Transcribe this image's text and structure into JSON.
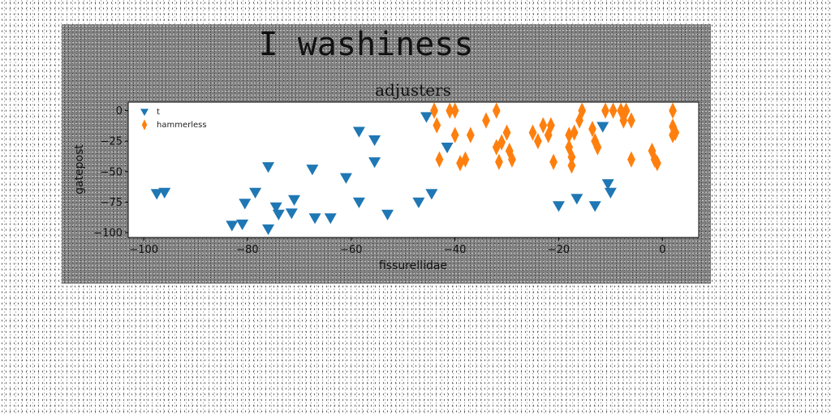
{
  "figure": {
    "suptitle": "I washiness"
  },
  "chart_data": {
    "type": "scatter",
    "title": "adjusters",
    "xlabel": "fissurellidae",
    "ylabel": "gatepost",
    "xlim": [
      -103,
      7
    ],
    "ylim": [
      -104,
      7
    ],
    "xticks": [
      -100,
      -80,
      -60,
      -40,
      -20,
      0
    ],
    "yticks": [
      0,
      -25,
      -50,
      -75,
      -100
    ],
    "grid": false,
    "legend_position": "top-left",
    "series": [
      {
        "name": "t",
        "marker": "triangle-down",
        "color": "#1f77b4",
        "points": [
          [
            -97.5,
            -68
          ],
          [
            -96,
            -67
          ],
          [
            -83,
            -94
          ],
          [
            -81,
            -93
          ],
          [
            -80.5,
            -76
          ],
          [
            -78.5,
            -67
          ],
          [
            -76,
            -97
          ],
          [
            -76,
            -46
          ],
          [
            -74.5,
            -79
          ],
          [
            -74,
            -85
          ],
          [
            -71.5,
            -84
          ],
          [
            -71,
            -73
          ],
          [
            -67.5,
            -48
          ],
          [
            -67,
            -88
          ],
          [
            -64,
            -88
          ],
          [
            -61,
            -55
          ],
          [
            -58.5,
            -75
          ],
          [
            -58.5,
            -17
          ],
          [
            -55.5,
            -24
          ],
          [
            -55.5,
            -42
          ],
          [
            -53,
            -85
          ],
          [
            -47,
            -75
          ],
          [
            -45.5,
            -5
          ],
          [
            -44.5,
            -68
          ],
          [
            -41.5,
            -30
          ],
          [
            -20,
            -78
          ],
          [
            -16.5,
            -72
          ],
          [
            -13,
            -78
          ],
          [
            -11.5,
            -13
          ],
          [
            -10.5,
            -60
          ],
          [
            -10,
            -67
          ]
        ]
      },
      {
        "name": "hammerless",
        "marker": "thin-diamond",
        "color": "#ff7f0e",
        "points": [
          [
            -44,
            0
          ],
          [
            -43.5,
            -12
          ],
          [
            -43,
            -40
          ],
          [
            -41,
            0
          ],
          [
            -40,
            0
          ],
          [
            -40,
            -20
          ],
          [
            -39,
            -43
          ],
          [
            -38,
            -40
          ],
          [
            -37,
            -20
          ],
          [
            -34,
            -8
          ],
          [
            -32,
            0
          ],
          [
            -32,
            -30
          ],
          [
            -31.5,
            -42
          ],
          [
            -31,
            -26
          ],
          [
            -30,
            -18
          ],
          [
            -29.5,
            -33
          ],
          [
            -29,
            -40
          ],
          [
            -25,
            -18
          ],
          [
            -24,
            -25
          ],
          [
            -23,
            -12
          ],
          [
            -22,
            -20
          ],
          [
            -21.5,
            -12
          ],
          [
            -21,
            -42
          ],
          [
            -18,
            -20
          ],
          [
            -18,
            -30
          ],
          [
            -17.5,
            -38
          ],
          [
            -17.5,
            -45
          ],
          [
            -17,
            -18
          ],
          [
            -16,
            -8
          ],
          [
            -15.5,
            0
          ],
          [
            -13.5,
            -15
          ],
          [
            -13,
            -25
          ],
          [
            -12.5,
            -30
          ],
          [
            -11,
            0
          ],
          [
            -9.5,
            0
          ],
          [
            -8,
            0
          ],
          [
            -7.5,
            -8
          ],
          [
            -7,
            0
          ],
          [
            -6,
            -8
          ],
          [
            -6,
            -40
          ],
          [
            -2,
            -33
          ],
          [
            -1.5,
            -40
          ],
          [
            -1,
            -43
          ],
          [
            2,
            -20
          ],
          [
            2,
            -13
          ],
          [
            2,
            0
          ],
          [
            2.5,
            -18
          ]
        ]
      }
    ]
  }
}
